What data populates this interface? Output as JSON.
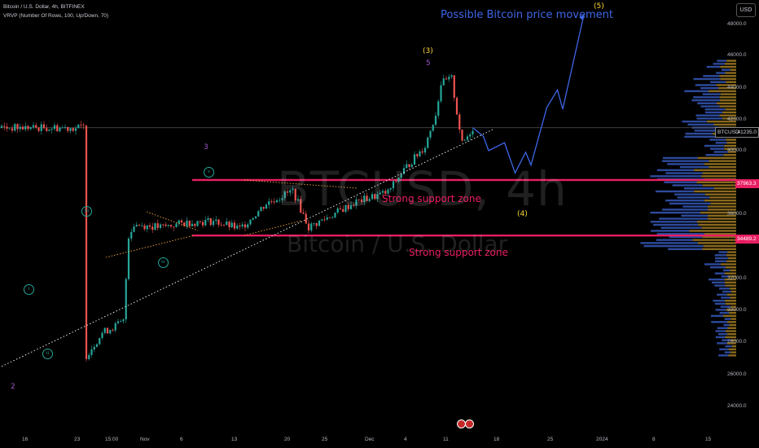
{
  "header": {
    "symbol_line": "Bitcoin / U.S. Dollar, 4h, BITFINEX",
    "indicator_line": "VRVP (Number Of Rows, 100, Up/Down, 70)",
    "currency_button": "USD"
  },
  "watermark": {
    "symbol": "BTCUSD, 4h",
    "name": "Bitcoin / U.S. Dollar"
  },
  "annotations": {
    "title": "Possible Bitcoin price movement",
    "support_upper": "Strong support zone",
    "support_lower": "Strong support zone"
  },
  "wave_labels": {
    "w2": "2",
    "w3": "3",
    "w5": "5",
    "w3_paren": "(3)",
    "w4_paren": "(4)",
    "w5_paren": "(5)",
    "i": "i",
    "ii": "ii",
    "iii": "iii",
    "iv": "iv",
    "v": "v"
  },
  "price_axis": [
    "48000.0",
    "46000.0",
    "44000.0",
    "42000.0",
    "40000.0",
    "38000.0",
    "36000.0",
    "34000.0",
    "32000.0",
    "30000.0",
    "28000.0",
    "26000.0",
    "24000.0"
  ],
  "price_tags": {
    "btc_label": "BTCUSD",
    "btc_price": "41235.0",
    "upper_support": "37963.3",
    "lower_support": "34489.2"
  },
  "time_axis": [
    "16",
    "23",
    "15:00",
    "Nov",
    "6",
    "13",
    "20",
    "25",
    "Dec",
    "4",
    "11",
    "18",
    "25",
    "2024",
    "8",
    "15"
  ],
  "colors": {
    "up": "#26a69a",
    "down": "#ef5350",
    "projection": "#3e66e8",
    "support": "#e91e63",
    "wave_yellow": "#fdd835",
    "wave_purple": "#9c57c9",
    "vp_up": "#2d4a9c",
    "vp_down": "#8a6a1e"
  },
  "chart_data": {
    "type": "candlestick",
    "symbol": "BTCUSD",
    "interval": "4h",
    "exchange": "BITFINEX",
    "ylim": [
      23000,
      49000
    ],
    "price_path": [
      [
        16,
        27000
      ],
      [
        19,
        28400
      ],
      [
        23,
        29100
      ],
      [
        24,
        34500
      ],
      [
        25,
        35200
      ],
      [
        30,
        35000
      ],
      [
        35,
        35300
      ],
      [
        40,
        35400
      ],
      [
        45,
        34900
      ],
      [
        50,
        36500
      ],
      [
        55,
        37300
      ],
      [
        58,
        35000
      ],
      [
        62,
        35700
      ],
      [
        67,
        36600
      ],
      [
        70,
        36900
      ],
      [
        73,
        37200
      ],
      [
        76,
        38600
      ],
      [
        80,
        40100
      ],
      [
        82,
        42100
      ],
      [
        83,
        44000
      ],
      [
        85,
        44300
      ],
      [
        86,
        42200
      ],
      [
        87,
        40200
      ],
      [
        88,
        40700
      ],
      [
        89,
        41235
      ]
    ],
    "support_levels": [
      37963.3,
      34489.2
    ],
    "current_price": 41235.0,
    "projection": [
      [
        89,
        41235
      ],
      [
        91,
        40700
      ],
      [
        92,
        39800
      ],
      [
        95,
        40300
      ],
      [
        97,
        38400
      ],
      [
        99,
        39700
      ],
      [
        100,
        38900
      ],
      [
        103,
        42500
      ],
      [
        105,
        43600
      ],
      [
        106,
        42400
      ],
      [
        110,
        48300
      ]
    ]
  }
}
